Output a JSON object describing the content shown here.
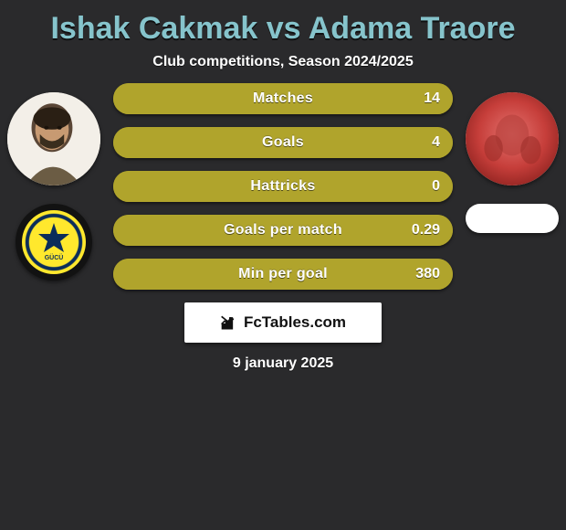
{
  "title_color": "#86c4cc",
  "title": "Ishak Cakmak vs Adama Traore",
  "subtitle": "Club competitions, Season 2024/2025",
  "brand": "FcTables.com",
  "date": "9 january 2025",
  "colors": {
    "player1": "#b0a42c",
    "player2": "#b0a42c",
    "bar_bg": "#b0a42c"
  },
  "player1": {
    "avatar_bg": "#f3efe8",
    "crest": {
      "bg": "#ffe82d",
      "ring": "#0b2d5a",
      "text": "ANKARA\nGÜCÜ"
    }
  },
  "player2": {
    "avatar_style": "photo-red",
    "has_crest": false
  },
  "stats": [
    {
      "label": "Matches",
      "p1": "",
      "p2": "14",
      "p1_pct": 0,
      "p2_pct": 100
    },
    {
      "label": "Goals",
      "p1": "",
      "p2": "4",
      "p1_pct": 0,
      "p2_pct": 100
    },
    {
      "label": "Hattricks",
      "p1": "",
      "p2": "0",
      "p1_pct": 50,
      "p2_pct": 50
    },
    {
      "label": "Goals per match",
      "p1": "",
      "p2": "0.29",
      "p1_pct": 0,
      "p2_pct": 100
    },
    {
      "label": "Min per goal",
      "p1": "",
      "p2": "380",
      "p1_pct": 0,
      "p2_pct": 100
    }
  ]
}
